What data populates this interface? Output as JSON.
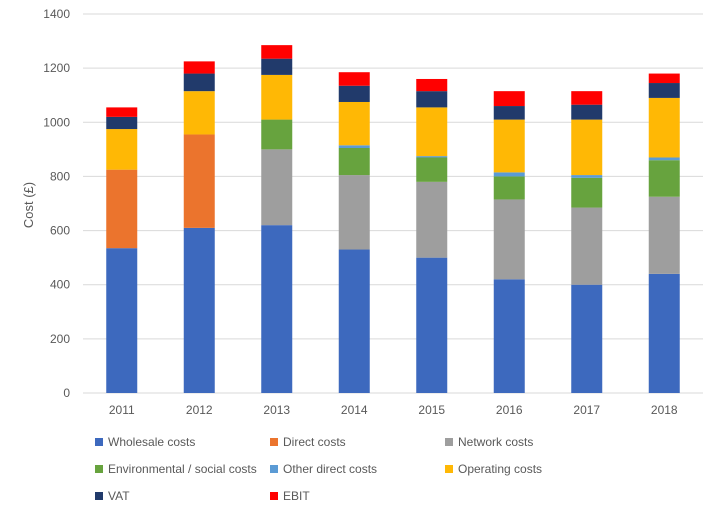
{
  "chart_data": {
    "type": "bar",
    "stacked": true,
    "title": "",
    "xlabel": "",
    "ylabel": "Cost (£)",
    "ylim": [
      0,
      1400
    ],
    "yticks": [
      0,
      200,
      400,
      600,
      800,
      1000,
      1200,
      1400
    ],
    "grid": true,
    "legend_position": "bottom",
    "categories": [
      "2011",
      "2012",
      "2013",
      "2014",
      "2015",
      "2016",
      "2017",
      "2018"
    ],
    "series": [
      {
        "name": "Wholesale costs",
        "color": "#3D69BE",
        "values": [
          535,
          610,
          620,
          530,
          500,
          420,
          400,
          440
        ]
      },
      {
        "name": "Direct costs",
        "color": "#EB742D",
        "values": [
          290,
          345,
          0,
          0,
          0,
          0,
          0,
          0
        ]
      },
      {
        "name": "Network costs",
        "color": "#9E9E9E",
        "values": [
          0,
          0,
          280,
          275,
          280,
          295,
          285,
          285
        ]
      },
      {
        "name": "Environmental / social costs",
        "color": "#67A33E",
        "values": [
          0,
          0,
          110,
          100,
          90,
          85,
          110,
          135
        ]
      },
      {
        "name": "Other direct costs",
        "color": "#5B9BD5",
        "values": [
          0,
          0,
          0,
          10,
          5,
          15,
          10,
          10
        ]
      },
      {
        "name": "Operating costs",
        "color": "#FFB805",
        "values": [
          150,
          160,
          165,
          160,
          180,
          195,
          205,
          220
        ]
      },
      {
        "name": "VAT",
        "color": "#213A6B",
        "values": [
          45,
          65,
          60,
          60,
          60,
          50,
          55,
          55
        ]
      },
      {
        "name": "EBIT",
        "color": "#FF0000",
        "values": [
          35,
          45,
          50,
          50,
          45,
          55,
          50,
          35
        ]
      }
    ]
  }
}
